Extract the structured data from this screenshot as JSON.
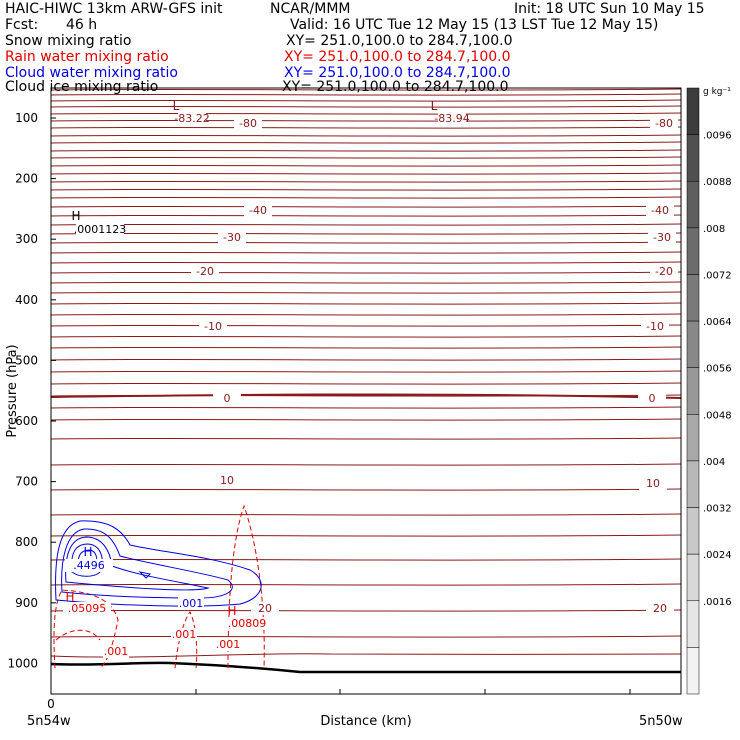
{
  "header": {
    "model": "HAIC-HIWC 13km ARW-GFS init",
    "org": "NCAR/MMM",
    "init": "Init: 18 UTC Sun 10 May 15",
    "fcst_label": "Fcst:",
    "fcst_value": "46 h",
    "valid": "Valid: 16 UTC Tue 12 May 15 (13 LST Tue 12 May 15)"
  },
  "fields": [
    {
      "name": "Snow mixing ratio",
      "xy": "XY= 251.0,100.0 to 284.7,100.0",
      "color": "#000000"
    },
    {
      "name": "Rain water mixing ratio",
      "xy": "XY= 251.0,100.0 to 284.7,100.0",
      "color": "#e00000"
    },
    {
      "name": "Cloud water mixing ratio",
      "xy": "XY= 251.0,100.0 to 284.7,100.0",
      "color": "#0000e0"
    },
    {
      "name": "Cloud ice mixing ratio",
      "xy": "XY= 251.0,100.0 to 284.7,100.0",
      "color": "#000000"
    }
  ],
  "chart_data": {
    "type": "line",
    "xlabel": "Distance (km)",
    "ylabel": "Pressure (hPa)",
    "x_start_tick": "0",
    "x_left_label": "5n54w",
    "x_right_label": "5n50w",
    "yticks": [
      100,
      200,
      300,
      400,
      500,
      600,
      700,
      800,
      900,
      1000
    ],
    "colorbar": {
      "unit": "g kg⁻¹",
      "labels": [
        ".0096",
        ".0088",
        ".008",
        ".0072",
        ".0064",
        ".0056",
        ".0048",
        ".004",
        ".0032",
        ".0024",
        ".0016"
      ],
      "colors": [
        "#3c3c3c",
        "#505050",
        "#5e5e5e",
        "#6c6c6c",
        "#7a7a7a",
        "#888888",
        "#989898",
        "#a8a8a8",
        "#b8b8b8",
        "#c8c8c8",
        "#d8d8d8",
        "#e6e6e6",
        "#f2f2f2"
      ]
    },
    "temperature_labels": [
      "-83.22",
      "-83.94",
      "-80",
      "-80",
      "-40",
      "-40",
      "-30",
      "-30",
      "-20",
      "-20",
      "-10",
      "-10",
      "0",
      "0",
      "10",
      "10",
      "20",
      "20"
    ],
    "extrema": [
      {
        "type": "L",
        "value": "-83.22",
        "color": "#8b1a1a"
      },
      {
        "type": "L",
        "value": "-83.94",
        "color": "#8b1a1a"
      },
      {
        "type": "H",
        "value": ".0001123",
        "color": "#000000"
      },
      {
        "type": "H",
        "value": ".4496",
        "color": "#0000e0"
      },
      {
        "type": "H",
        "value": ".05095",
        "color": "#e00000"
      },
      {
        "type": "H",
        "value": ".00809",
        "color": "#e00000"
      }
    ],
    "contour_labels": [
      {
        "text": ".001",
        "color": "#0000e0"
      },
      {
        "text": ".001",
        "color": "#e00000"
      },
      {
        "text": ".001",
        "color": "#e00000"
      },
      {
        "text": ".001",
        "color": "#e00000"
      }
    ]
  }
}
